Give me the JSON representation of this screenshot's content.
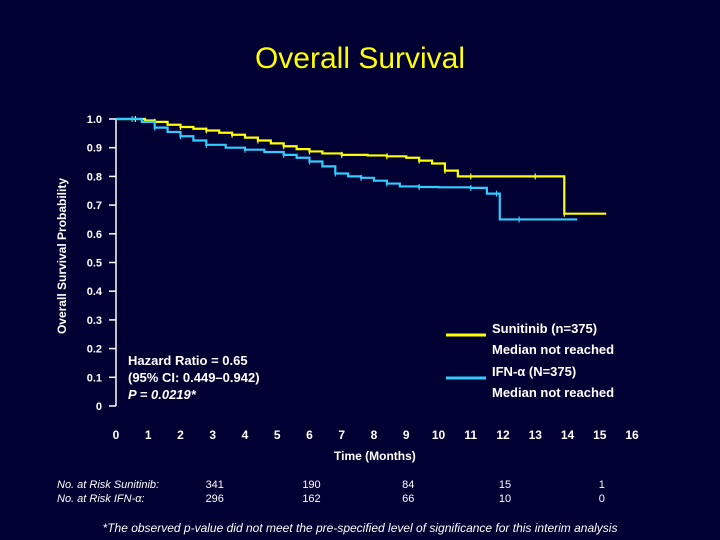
{
  "title": "Overall Survival",
  "chart_data": {
    "type": "line",
    "ylabel": "Overall Survival Probability",
    "xlabel": "Time (Months)",
    "ylim": [
      0,
      1
    ],
    "xlim": [
      0,
      16
    ],
    "y_ticks": [
      "0",
      "0.1",
      "0.2",
      "0.3",
      "0.4",
      "0.5",
      "0.6",
      "0.7",
      "0.8",
      "0.9",
      "1.0"
    ],
    "x_ticks": [
      "0",
      "1",
      "2",
      "3",
      "4",
      "5",
      "6",
      "7",
      "8",
      "9",
      "10",
      "11",
      "12",
      "13",
      "14",
      "15",
      "16"
    ],
    "series": [
      {
        "name": "Sunitinib",
        "legend_line1": "Sunitinib (n=375)",
        "legend_line2": "Median not reached",
        "color": "#ffff00",
        "points": [
          [
            0,
            1.0
          ],
          [
            0.6,
            1.0
          ],
          [
            0.9,
            0.995
          ],
          [
            1.2,
            0.99
          ],
          [
            1.6,
            0.98
          ],
          [
            2.0,
            0.972
          ],
          [
            2.4,
            0.966
          ],
          [
            2.8,
            0.96
          ],
          [
            3.2,
            0.952
          ],
          [
            3.6,
            0.945
          ],
          [
            4.0,
            0.935
          ],
          [
            4.4,
            0.925
          ],
          [
            4.8,
            0.915
          ],
          [
            5.2,
            0.905
          ],
          [
            5.6,
            0.895
          ],
          [
            6.0,
            0.887
          ],
          [
            6.4,
            0.88
          ],
          [
            7.0,
            0.875
          ],
          [
            7.8,
            0.873
          ],
          [
            8.4,
            0.87
          ],
          [
            9.0,
            0.865
          ],
          [
            9.4,
            0.855
          ],
          [
            9.8,
            0.845
          ],
          [
            10.2,
            0.82
          ],
          [
            10.6,
            0.8
          ],
          [
            11.0,
            0.8
          ],
          [
            12.0,
            0.8
          ],
          [
            13.0,
            0.8
          ],
          [
            13.9,
            0.8
          ],
          [
            13.9,
            0.67
          ],
          [
            14.5,
            0.67
          ],
          [
            15.2,
            0.67
          ]
        ]
      },
      {
        "name": "IFN-α",
        "legend_line1": "IFN-α (N=375)",
        "legend_line2": "Median not reached",
        "color": "#33ccff",
        "points": [
          [
            0,
            1.0
          ],
          [
            0.5,
            1.0
          ],
          [
            0.8,
            0.99
          ],
          [
            1.2,
            0.97
          ],
          [
            1.6,
            0.955
          ],
          [
            2.0,
            0.94
          ],
          [
            2.4,
            0.925
          ],
          [
            2.8,
            0.91
          ],
          [
            3.4,
            0.9
          ],
          [
            4.0,
            0.893
          ],
          [
            4.6,
            0.885
          ],
          [
            5.2,
            0.875
          ],
          [
            5.6,
            0.865
          ],
          [
            6.0,
            0.852
          ],
          [
            6.4,
            0.835
          ],
          [
            6.8,
            0.81
          ],
          [
            7.2,
            0.8
          ],
          [
            7.6,
            0.795
          ],
          [
            8.0,
            0.785
          ],
          [
            8.4,
            0.775
          ],
          [
            8.8,
            0.765
          ],
          [
            9.4,
            0.763
          ],
          [
            10.0,
            0.762
          ],
          [
            11.0,
            0.76
          ],
          [
            11.5,
            0.74
          ],
          [
            11.8,
            0.74
          ],
          [
            11.9,
            0.65
          ],
          [
            12.5,
            0.65
          ],
          [
            13.5,
            0.65
          ],
          [
            14.3,
            0.65
          ]
        ]
      }
    ],
    "annotation": {
      "line1": "Hazard Ratio = 0.65",
      "line2": "(95% CI: 0.449–0.942)",
      "line3": "P = 0.0219*"
    }
  },
  "risk_table": {
    "label_sunitinib": "No. at Risk Sunitinib:",
    "label_ifn": "No. at Risk IFN-α:",
    "columns": [
      {
        "month": 3,
        "sunitinib": "341",
        "ifn": "296"
      },
      {
        "month": 6,
        "sunitinib": "190",
        "ifn": "162"
      },
      {
        "month": 9,
        "sunitinib": "84",
        "ifn": "66"
      },
      {
        "month": 12,
        "sunitinib": "15",
        "ifn": "10"
      },
      {
        "month": 15,
        "sunitinib": "1",
        "ifn": "0"
      }
    ]
  },
  "footnote": "*The observed p-value did not meet the pre-specified level of significance for this interim analysis"
}
